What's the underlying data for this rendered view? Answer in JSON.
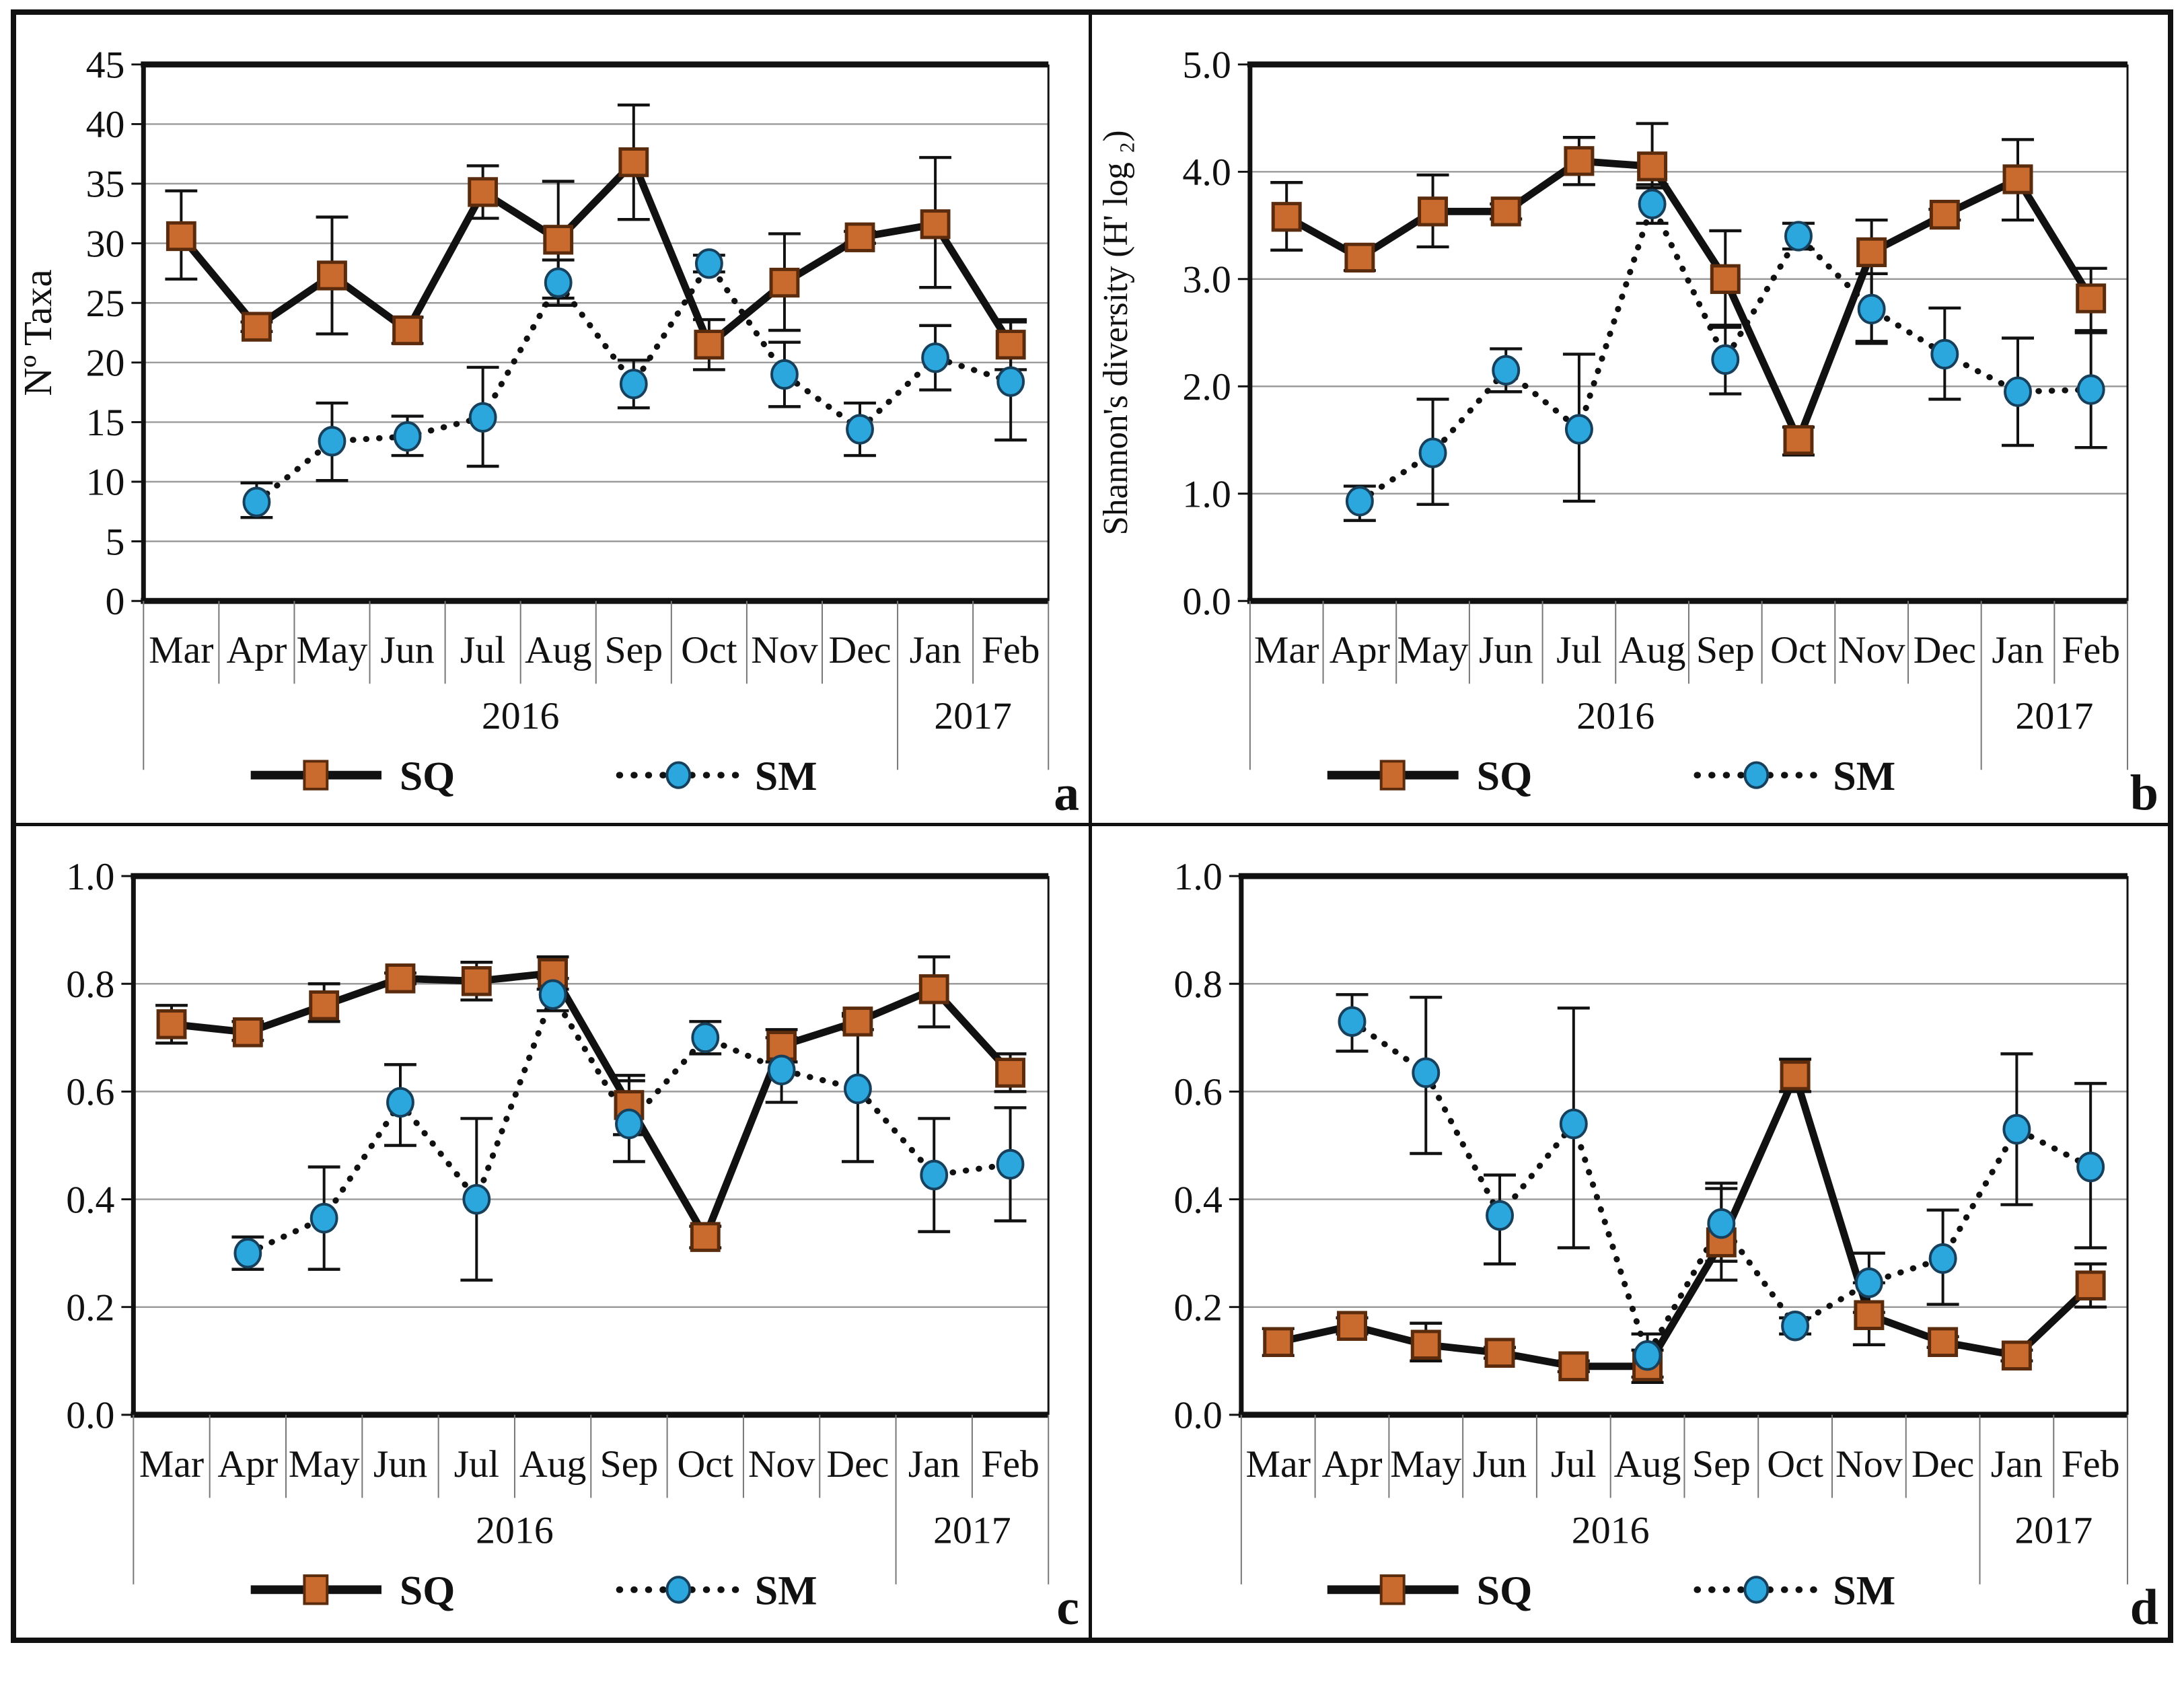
{
  "figure": {
    "colors": {
      "sq_fill": "#C96A2E",
      "sq_edge": "#5A2B0C",
      "sm_fill": "#2BA7DE",
      "sm_edge": "#17405C",
      "line": "#111111",
      "grid": "#9B9B9B",
      "frame": "#111111",
      "separator": "#777777",
      "text": "#111111"
    },
    "legend": {
      "sq_label": "SQ",
      "sm_label": "SM"
    }
  },
  "chart_data": [
    {
      "type": "line",
      "letter": "a",
      "ylabel": "Nº Taxa",
      "ylim": [
        0,
        45
      ],
      "grid": true,
      "legend_position": "bottom",
      "tick_values": [
        0,
        5,
        10,
        15,
        20,
        25,
        30,
        35,
        40,
        45
      ],
      "tick_labels": [
        "0",
        "5",
        "10",
        "15",
        "20",
        "25",
        "30",
        "35",
        "40",
        "45"
      ],
      "categories": [
        "Mar",
        "Apr",
        "May",
        "Jun",
        "Jul",
        "Aug",
        "Sep",
        "Oct",
        "Nov",
        "Dec",
        "Jan",
        "Feb"
      ],
      "years": [
        {
          "label": "2016",
          "from": 0,
          "to": 10
        },
        {
          "label": "2017",
          "from": 10,
          "to": 12
        }
      ],
      "series": [
        {
          "name": "SQ",
          "marker": "square",
          "line": "solid",
          "values": [
            30.6,
            23.0,
            27.3,
            22.7,
            34.3,
            30.3,
            36.8,
            21.5,
            26.7,
            30.5,
            31.6,
            21.5
          ],
          "err_lo": [
            27.0,
            22.6,
            22.4,
            21.6,
            32.1,
            25.4,
            32.0,
            19.4,
            22.7,
            30.0,
            26.3,
            19.4
          ],
          "err_hi": [
            34.4,
            23.4,
            32.2,
            23.8,
            36.5,
            35.2,
            41.6,
            23.6,
            30.8,
            31.0,
            37.2,
            23.6
          ]
        },
        {
          "name": "SM",
          "marker": "circle",
          "line": "dotted",
          "values": [
            null,
            8.3,
            13.4,
            13.8,
            15.4,
            26.7,
            18.2,
            28.3,
            19.0,
            14.4,
            20.4,
            18.4
          ],
          "err_lo": [
            null,
            7.0,
            10.1,
            12.2,
            11.3,
            24.8,
            16.2,
            27.6,
            16.3,
            12.2,
            17.7,
            13.5
          ],
          "err_hi": [
            null,
            9.9,
            16.6,
            15.5,
            19.6,
            28.6,
            20.2,
            29.0,
            21.7,
            16.6,
            23.1,
            23.4
          ]
        }
      ]
    },
    {
      "type": "line",
      "letter": "b",
      "ylabel": "Shannon's diversity  (H' log ₂)",
      "ylim": [
        0,
        5
      ],
      "grid": true,
      "legend_position": "bottom",
      "tick_values": [
        0,
        1,
        2,
        3,
        4,
        5
      ],
      "tick_labels": [
        "0.0",
        "1.0",
        "2.0",
        "3.0",
        "4.0",
        "5.0"
      ],
      "categories": [
        "Mar",
        "Apr",
        "May",
        "Jun",
        "Jul",
        "Aug",
        "Sep",
        "Oct",
        "Nov",
        "Dec",
        "Jan",
        "Feb"
      ],
      "years": [
        {
          "label": "2016",
          "from": 0,
          "to": 10
        },
        {
          "label": "2017",
          "from": 10,
          "to": 12
        }
      ],
      "series": [
        {
          "name": "SQ",
          "marker": "square",
          "line": "solid",
          "values": [
            3.58,
            3.2,
            3.63,
            3.63,
            4.1,
            4.05,
            3.0,
            1.5,
            3.25,
            3.6,
            3.93,
            2.82
          ],
          "err_lo": [
            3.27,
            3.08,
            3.3,
            3.56,
            3.88,
            3.85,
            2.55,
            1.36,
            2.42,
            3.55,
            3.55,
            2.52
          ],
          "err_hi": [
            3.9,
            3.32,
            3.97,
            3.7,
            4.32,
            4.45,
            3.45,
            1.62,
            3.55,
            3.65,
            4.3,
            3.1
          ]
        },
        {
          "name": "SM",
          "marker": "circle",
          "line": "dotted",
          "values": [
            null,
            0.93,
            1.38,
            2.15,
            1.6,
            3.7,
            2.25,
            3.4,
            2.72,
            2.3,
            1.95,
            1.97
          ],
          "err_lo": [
            null,
            0.75,
            0.9,
            1.95,
            0.93,
            3.52,
            1.93,
            3.28,
            2.4,
            1.88,
            1.45,
            1.43
          ],
          "err_hi": [
            null,
            1.07,
            1.88,
            2.35,
            2.3,
            3.88,
            2.57,
            3.52,
            3.05,
            2.73,
            2.45,
            2.5
          ]
        }
      ]
    },
    {
      "type": "line",
      "letter": "c",
      "ylabel": "",
      "ylim": [
        0,
        1
      ],
      "grid": true,
      "legend_position": "bottom",
      "tick_values": [
        0,
        0.2,
        0.4,
        0.6,
        0.8,
        1.0
      ],
      "tick_labels": [
        "0.0",
        "0.2",
        "0.4",
        "0.6",
        "0.8",
        "1.0"
      ],
      "categories": [
        "Mar",
        "Apr",
        "May",
        "Jun",
        "Jul",
        "Aug",
        "Sep",
        "Oct",
        "Nov",
        "Dec",
        "Jan",
        "Feb"
      ],
      "years": [
        {
          "label": "2016",
          "from": 0,
          "to": 10
        },
        {
          "label": "2017",
          "from": 10,
          "to": 12
        }
      ],
      "series": [
        {
          "name": "SQ",
          "marker": "square",
          "line": "solid",
          "values": [
            0.725,
            0.71,
            0.76,
            0.81,
            0.805,
            0.82,
            0.575,
            0.33,
            0.685,
            0.73,
            0.79,
            0.635
          ],
          "err_lo": [
            0.69,
            0.695,
            0.73,
            0.8,
            0.77,
            0.79,
            0.52,
            0.31,
            0.655,
            0.715,
            0.72,
            0.6
          ],
          "err_hi": [
            0.76,
            0.73,
            0.8,
            0.82,
            0.84,
            0.85,
            0.63,
            0.35,
            0.715,
            0.745,
            0.85,
            0.67
          ]
        },
        {
          "name": "SM",
          "marker": "circle",
          "line": "dotted",
          "values": [
            null,
            0.3,
            0.365,
            0.58,
            0.4,
            0.78,
            0.54,
            0.7,
            0.64,
            0.605,
            0.445,
            0.465
          ],
          "err_lo": [
            null,
            0.27,
            0.27,
            0.5,
            0.25,
            0.75,
            0.47,
            0.67,
            0.58,
            0.47,
            0.34,
            0.36
          ],
          "err_hi": [
            null,
            0.33,
            0.46,
            0.65,
            0.55,
            0.81,
            0.62,
            0.73,
            0.7,
            0.74,
            0.55,
            0.57
          ]
        }
      ]
    },
    {
      "type": "line",
      "letter": "d",
      "ylabel": "",
      "ylim": [
        0,
        1
      ],
      "grid": true,
      "legend_position": "bottom",
      "tick_values": [
        0,
        0.2,
        0.4,
        0.6,
        0.8,
        1.0
      ],
      "tick_labels": [
        "0.0",
        "0.2",
        "0.4",
        "0.6",
        "0.8",
        "1.0"
      ],
      "categories": [
        "Mar",
        "Apr",
        "May",
        "Jun",
        "Jul",
        "Aug",
        "Sep",
        "Oct",
        "Nov",
        "Dec",
        "Jan",
        "Feb"
      ],
      "years": [
        {
          "label": "2016",
          "from": 0,
          "to": 10
        },
        {
          "label": "2017",
          "from": 10,
          "to": 12
        }
      ],
      "series": [
        {
          "name": "SQ",
          "marker": "square",
          "line": "solid",
          "values": [
            0.135,
            0.165,
            0.13,
            0.115,
            0.09,
            0.09,
            0.32,
            0.63,
            0.185,
            0.135,
            0.11,
            0.24
          ],
          "err_lo": [
            0.11,
            0.15,
            0.1,
            0.105,
            0.08,
            0.06,
            0.25,
            0.6,
            0.13,
            0.125,
            0.1,
            0.2
          ],
          "err_hi": [
            0.16,
            0.18,
            0.17,
            0.125,
            0.1,
            0.12,
            0.42,
            0.66,
            0.245,
            0.145,
            0.12,
            0.28
          ]
        },
        {
          "name": "SM",
          "marker": "circle",
          "line": "dotted",
          "values": [
            null,
            0.73,
            0.635,
            0.37,
            0.54,
            0.11,
            0.355,
            0.165,
            0.245,
            0.29,
            0.53,
            0.46
          ],
          "err_lo": [
            null,
            0.675,
            0.485,
            0.28,
            0.31,
            0.07,
            0.285,
            0.15,
            0.19,
            0.205,
            0.39,
            0.31
          ],
          "err_hi": [
            null,
            0.78,
            0.775,
            0.445,
            0.755,
            0.15,
            0.43,
            0.18,
            0.3,
            0.38,
            0.67,
            0.615
          ]
        }
      ]
    }
  ]
}
